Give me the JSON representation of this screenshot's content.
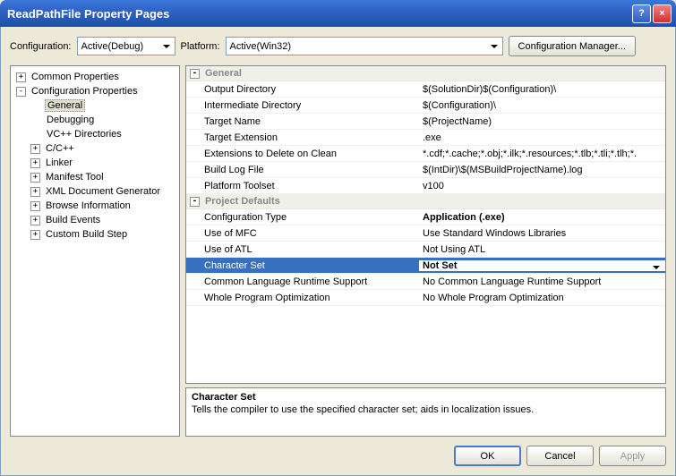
{
  "title": "ReadPathFile Property Pages",
  "config": {
    "label": "Configuration:",
    "value": "Active(Debug)"
  },
  "platform": {
    "label": "Platform:",
    "value": "Active(Win32)"
  },
  "configMgr": "Configuration Manager...",
  "tree": {
    "common": "Common Properties",
    "cfg": "Configuration Properties",
    "general": "General",
    "debugging": "Debugging",
    "vcdirs": "VC++ Directories",
    "ccpp": "C/C++",
    "linker": "Linker",
    "manifest": "Manifest Tool",
    "xml": "XML Document Generator",
    "browse": "Browse Information",
    "build": "Build Events",
    "custom": "Custom Build Step"
  },
  "sections": {
    "general": "General",
    "defaults": "Project Defaults"
  },
  "props": {
    "outdir": {
      "n": "Output Directory",
      "v": "$(SolutionDir)$(Configuration)\\"
    },
    "intdir": {
      "n": "Intermediate Directory",
      "v": "$(Configuration)\\"
    },
    "tname": {
      "n": "Target Name",
      "v": "$(ProjectName)"
    },
    "text": {
      "n": "Target Extension",
      "v": ".exe"
    },
    "extdel": {
      "n": "Extensions to Delete on Clean",
      "v": "*.cdf;*.cache;*.obj;*.ilk;*.resources;*.tlb;*.tli;*.tlh;*."
    },
    "blog": {
      "n": "Build Log File",
      "v": "$(IntDir)\\$(MSBuildProjectName).log"
    },
    "ptool": {
      "n": "Platform Toolset",
      "v": "v100"
    },
    "ctype": {
      "n": "Configuration Type",
      "v": "Application (.exe)"
    },
    "mfc": {
      "n": "Use of MFC",
      "v": "Use Standard Windows Libraries"
    },
    "atl": {
      "n": "Use of ATL",
      "v": "Not Using ATL"
    },
    "charset": {
      "n": "Character Set",
      "v": "Not Set"
    },
    "clr": {
      "n": "Common Language Runtime Support",
      "v": "No Common Language Runtime Support"
    },
    "wpo": {
      "n": "Whole Program Optimization",
      "v": "No Whole Program Optimization"
    }
  },
  "desc": {
    "title": "Character Set",
    "text": "Tells the compiler to use the specified character set; aids in localization issues."
  },
  "buttons": {
    "ok": "OK",
    "cancel": "Cancel",
    "apply": "Apply"
  }
}
